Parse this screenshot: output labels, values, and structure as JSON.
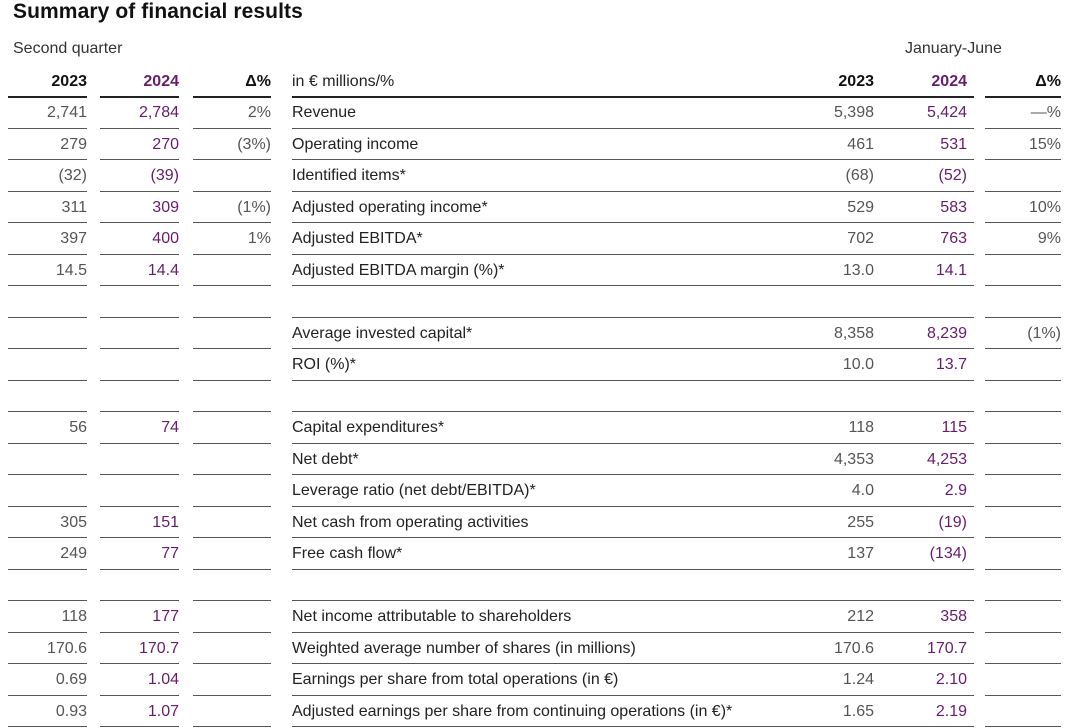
{
  "title": "Summary of financial results",
  "groups": {
    "left": "Second quarter",
    "right": "January-June"
  },
  "header": {
    "q_2023": "2023",
    "q_2024": "2024",
    "q_delta": "Δ%",
    "label": "in € millions/%",
    "h_2023": "2023",
    "h_2024": "2024",
    "h_delta": "Δ%"
  },
  "rows": [
    {
      "q23": "2,741",
      "q24": "2,784",
      "qd": "2%",
      "label": "Revenue",
      "h23": "5,398",
      "h24": "5,424",
      "hd": "—%"
    },
    {
      "q23": "279",
      "q24": "270",
      "qd": "(3%)",
      "label": "Operating income",
      "h23": "461",
      "h24": "531",
      "hd": "15%"
    },
    {
      "q23": "(32)",
      "q24": "(39)",
      "qd": "",
      "label": "Identified items*",
      "h23": "(68)",
      "h24": "(52)",
      "hd": ""
    },
    {
      "q23": "311",
      "q24": "309",
      "qd": "(1%)",
      "label": "Adjusted operating income*",
      "h23": "529",
      "h24": "583",
      "hd": "10%"
    },
    {
      "q23": "397",
      "q24": "400",
      "qd": "1%",
      "label": "Adjusted EBITDA*",
      "h23": "702",
      "h24": "763",
      "hd": "9%"
    },
    {
      "q23": "14.5",
      "q24": "14.4",
      "qd": "",
      "label": "Adjusted EBITDA margin (%)*",
      "h23": "13.0",
      "h24": "14.1",
      "hd": ""
    },
    {
      "q23": "",
      "q24": "",
      "qd": "",
      "label": "",
      "h23": "",
      "h24": "",
      "hd": ""
    },
    {
      "q23": "",
      "q24": "",
      "qd": "",
      "label": "Average invested capital*",
      "h23": "8,358",
      "h24": "8,239",
      "hd": "(1%)"
    },
    {
      "q23": "",
      "q24": "",
      "qd": "",
      "label": "ROI (%)*",
      "h23": "10.0",
      "h24": "13.7",
      "hd": ""
    },
    {
      "q23": "",
      "q24": "",
      "qd": "",
      "label": "",
      "h23": "",
      "h24": "",
      "hd": ""
    },
    {
      "q23": "56",
      "q24": "74",
      "qd": "",
      "label": "Capital expenditures*",
      "h23": "118",
      "h24": "115",
      "hd": ""
    },
    {
      "q23": "",
      "q24": "",
      "qd": "",
      "label": "Net debt*",
      "h23": "4,353",
      "h24": "4,253",
      "hd": ""
    },
    {
      "q23": "",
      "q24": "",
      "qd": "",
      "label": "Leverage ratio (net debt/EBITDA)*",
      "h23": "4.0",
      "h24": "2.9",
      "hd": ""
    },
    {
      "q23": "305",
      "q24": "151",
      "qd": "",
      "label": "Net cash from operating activities",
      "h23": "255",
      "h24": "(19)",
      "hd": ""
    },
    {
      "q23": "249",
      "q24": "77",
      "qd": "",
      "label": "Free cash flow*",
      "h23": "137",
      "h24": "(134)",
      "hd": ""
    },
    {
      "q23": "",
      "q24": "",
      "qd": "",
      "label": "",
      "h23": "",
      "h24": "",
      "hd": ""
    },
    {
      "q23": "118",
      "q24": "177",
      "qd": "",
      "label": "Net income attributable to shareholders",
      "h23": "212",
      "h24": "358",
      "hd": ""
    },
    {
      "q23": "170.6",
      "q24": "170.7",
      "qd": "",
      "label": "Weighted average number of shares (in millions)",
      "h23": "170.6",
      "h24": "170.7",
      "hd": ""
    },
    {
      "q23": "0.69",
      "q24": "1.04",
      "qd": "",
      "label": "Earnings per share from total operations (in €)",
      "h23": "1.24",
      "h24": "2.10",
      "hd": ""
    },
    {
      "q23": "0.93",
      "q24": "1.07",
      "qd": "",
      "label": "Adjusted earnings per share from continuing operations (in €)*",
      "h23": "1.65",
      "h24": "2.19",
      "hd": ""
    }
  ]
}
